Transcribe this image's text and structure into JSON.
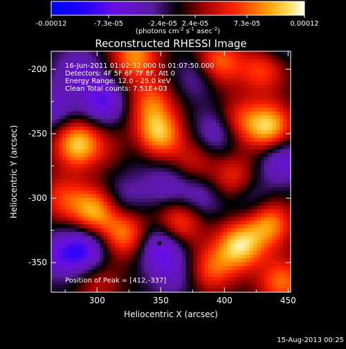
{
  "chart_data": {
    "type": "heatmap",
    "title": "Reconstructed RHESSI Image",
    "xlabel": "Heliocentric X (arcsec)",
    "ylabel": "Heliocentric Y (arcsec)",
    "xlim": [
      264,
      452
    ],
    "ylim": [
      -373,
      -186
    ],
    "xticks": [
      300,
      350,
      400,
      450
    ],
    "yticks": [
      -200,
      -250,
      -300,
      -350
    ],
    "colorbar": {
      "ticks": [
        "-0.00012",
        "-7.3e-05",
        "-2.4e-05",
        "2.4e-05",
        "7.3e-05",
        "0.00012"
      ],
      "unit_prefix": "(photons cm",
      "unit_exp1": "-2",
      "unit_mid": " s",
      "unit_exp2": "-1",
      "unit_mid2": " asec",
      "unit_exp3": "-2",
      "unit_suffix": ")",
      "vmin": -0.00012,
      "vmax": 0.00012
    },
    "annotations": [
      "16-Jun-2011 01:02:32.000 to 01:07:50.000",
      "Detectors: 4F 5F 6F 7F 8F, Att 0",
      "Energy Range: 12.0 - 25.0 keV",
      "Clean     Total counts: 7.51E+03"
    ],
    "peak_label": "Position of Peak = [412,-337]",
    "peak": [
      412,
      -337
    ],
    "marker": [
      349,
      -335
    ],
    "sources": [
      {
        "x": 285,
        "y": -258,
        "w": 1.0
      },
      {
        "x": 273,
        "y": -300,
        "w": 0.5
      },
      {
        "x": 348,
        "y": -250,
        "w": 0.95
      },
      {
        "x": 342,
        "y": -225,
        "w": 0.6
      },
      {
        "x": 330,
        "y": -190,
        "w": 0.8
      },
      {
        "x": 395,
        "y": -195,
        "w": 0.75
      },
      {
        "x": 430,
        "y": -200,
        "w": 0.6
      },
      {
        "x": 435,
        "y": -245,
        "w": 1.0
      },
      {
        "x": 410,
        "y": -240,
        "w": 0.55
      },
      {
        "x": 408,
        "y": -285,
        "w": 0.55
      },
      {
        "x": 298,
        "y": -310,
        "w": 0.9
      },
      {
        "x": 322,
        "y": -328,
        "w": 0.75
      },
      {
        "x": 365,
        "y": -318,
        "w": 0.7
      },
      {
        "x": 412,
        "y": -337,
        "w": 1.0
      },
      {
        "x": 390,
        "y": -355,
        "w": 0.6
      },
      {
        "x": 435,
        "y": -320,
        "w": 0.8
      },
      {
        "x": 300,
        "y": -365,
        "w": 0.35
      },
      {
        "x": 318,
        "y": -262,
        "w": 0.45
      },
      {
        "x": 445,
        "y": -365,
        "w": 0.7
      },
      {
        "x": 375,
        "y": -272,
        "w": 0.4
      }
    ],
    "sinks": [
      {
        "x": 290,
        "y": -340,
        "w": 1.0
      },
      {
        "x": 270,
        "y": -345,
        "w": 0.6
      },
      {
        "x": 305,
        "y": -225,
        "w": 0.9
      },
      {
        "x": 325,
        "y": -262,
        "w": 0.55
      },
      {
        "x": 380,
        "y": -205,
        "w": 0.5
      },
      {
        "x": 395,
        "y": -248,
        "w": 0.7
      },
      {
        "x": 350,
        "y": -338,
        "w": 0.9
      },
      {
        "x": 355,
        "y": -290,
        "w": 0.55
      },
      {
        "x": 445,
        "y": -270,
        "w": 0.75
      },
      {
        "x": 380,
        "y": -300,
        "w": 0.55
      },
      {
        "x": 420,
        "y": -300,
        "w": 0.5
      },
      {
        "x": 360,
        "y": -360,
        "w": 0.45
      },
      {
        "x": 285,
        "y": -200,
        "w": 0.55
      },
      {
        "x": 440,
        "y": -180,
        "w": 0.4
      },
      {
        "x": 265,
        "y": -230,
        "w": 0.6
      },
      {
        "x": 320,
        "y": -300,
        "w": 0.45
      }
    ]
  },
  "footer_date": "15-Aug-2013 00:25"
}
